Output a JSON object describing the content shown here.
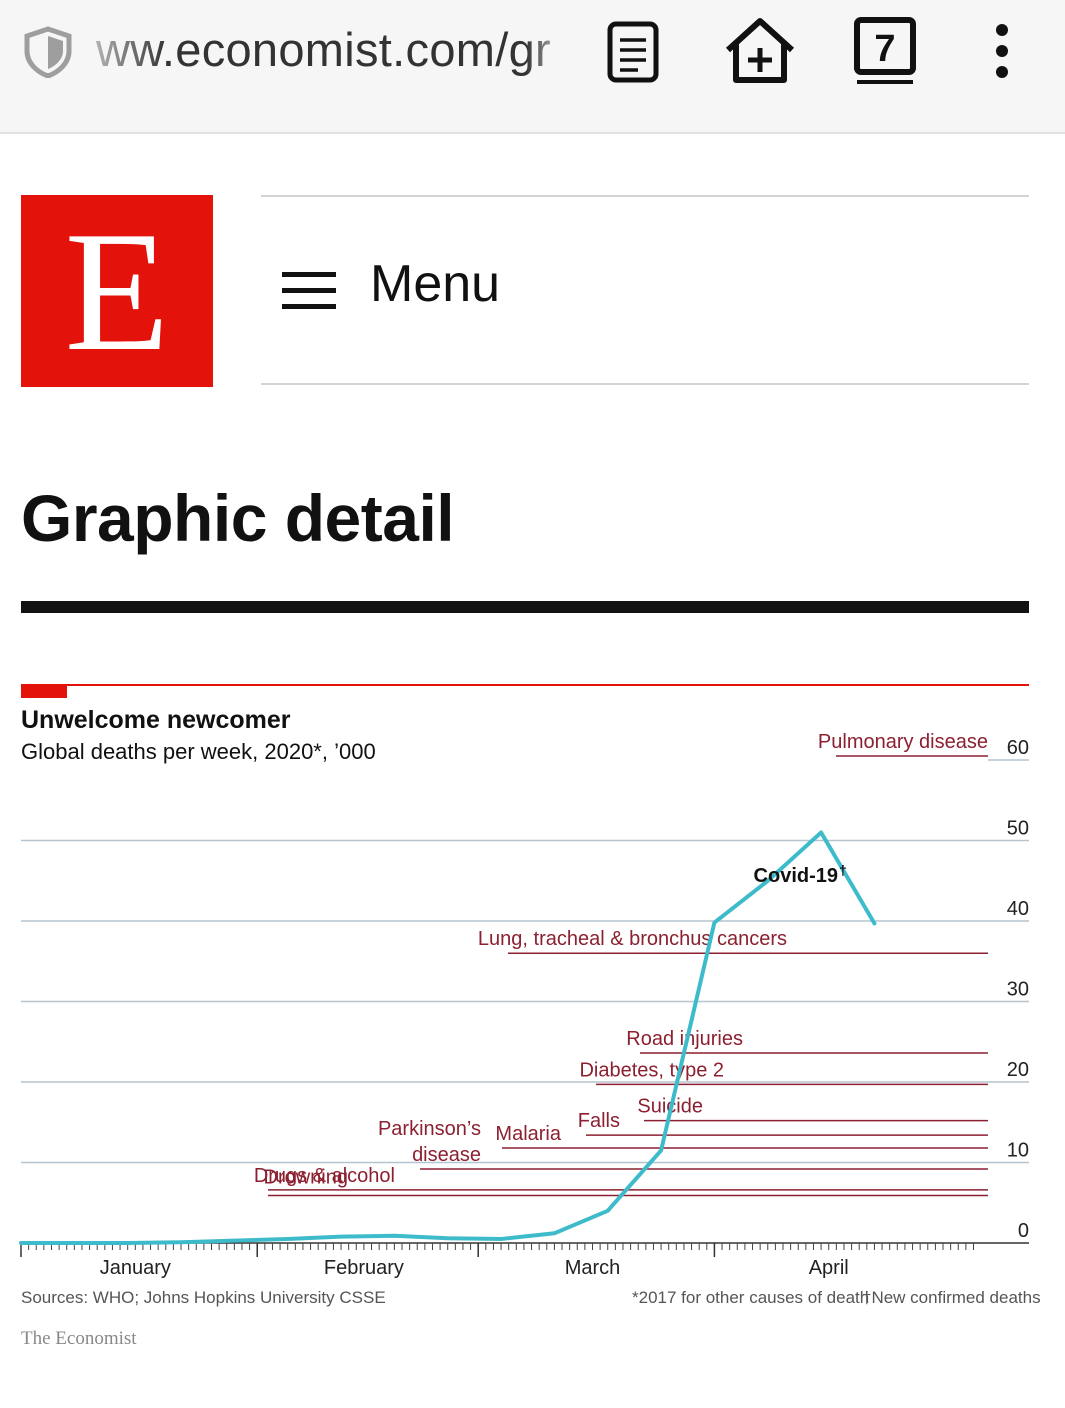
{
  "browser": {
    "url": "ww.economist.com/gr",
    "tab_count": "7",
    "icons": [
      "shield-icon",
      "reader-mode-icon",
      "add-to-home-icon",
      "tabs-icon",
      "overflow-menu-icon"
    ]
  },
  "header": {
    "logo_letter": "E",
    "menu_label": "Menu"
  },
  "section": {
    "title": "Graphic detail"
  },
  "colors": {
    "brand_red": "#e3120b",
    "covid_line": "#3ebbcb",
    "cause_lines": "#8c2030",
    "grid": "#b5c4cf"
  },
  "chart_data": {
    "type": "line",
    "title": "Unwelcome newcomer",
    "subtitle": "Global deaths per week, 2020*, ’000",
    "ylim": [
      0,
      60
    ],
    "y_ticks": [
      "0",
      "10",
      "20",
      "30",
      "40",
      "50",
      "60"
    ],
    "x_labels": [
      "January",
      "February",
      "March",
      "April"
    ],
    "grid": true,
    "series": [
      {
        "name": "Covid-19†",
        "x": [
          "2020-01-01",
          "2020-01-08",
          "2020-01-15",
          "2020-01-22",
          "2020-01-29",
          "2020-02-05",
          "2020-02-12",
          "2020-02-19",
          "2020-02-26",
          "2020-03-04",
          "2020-03-11",
          "2020-03-18",
          "2020-03-25",
          "2020-04-01",
          "2020-04-08",
          "2020-04-15",
          "2020-04-22"
        ],
        "values": [
          0.0,
          0.0,
          0.0,
          0.1,
          0.3,
          0.5,
          0.8,
          0.9,
          0.6,
          0.5,
          1.2,
          4.0,
          11.5,
          39.8,
          45.0,
          51.0,
          39.7
        ]
      }
    ],
    "reference_lines": [
      {
        "name": "Pulmonary disease",
        "value": 60.5
      },
      {
        "name": "Lung, tracheal & bronchus cancers",
        "value": 36.0
      },
      {
        "name": "Road injuries",
        "value": 23.6
      },
      {
        "name": "Diabetes, type 2",
        "value": 19.7
      },
      {
        "name": "Suicide",
        "value": 15.2
      },
      {
        "name": "Falls",
        "value": 13.4
      },
      {
        "name": "Malaria",
        "value": 11.8
      },
      {
        "name": "Parkinson’s disease",
        "value": 9.2
      },
      {
        "name": "Drugs & alcohol",
        "value": 6.6
      },
      {
        "name": "Drowning",
        "value": 5.9
      }
    ],
    "sources": "Sources: WHO; Johns Hopkins University CSSE",
    "note_star": "*2017 for other causes of death",
    "note_dagger": "†New confirmed deaths",
    "brand": "The Economist"
  }
}
